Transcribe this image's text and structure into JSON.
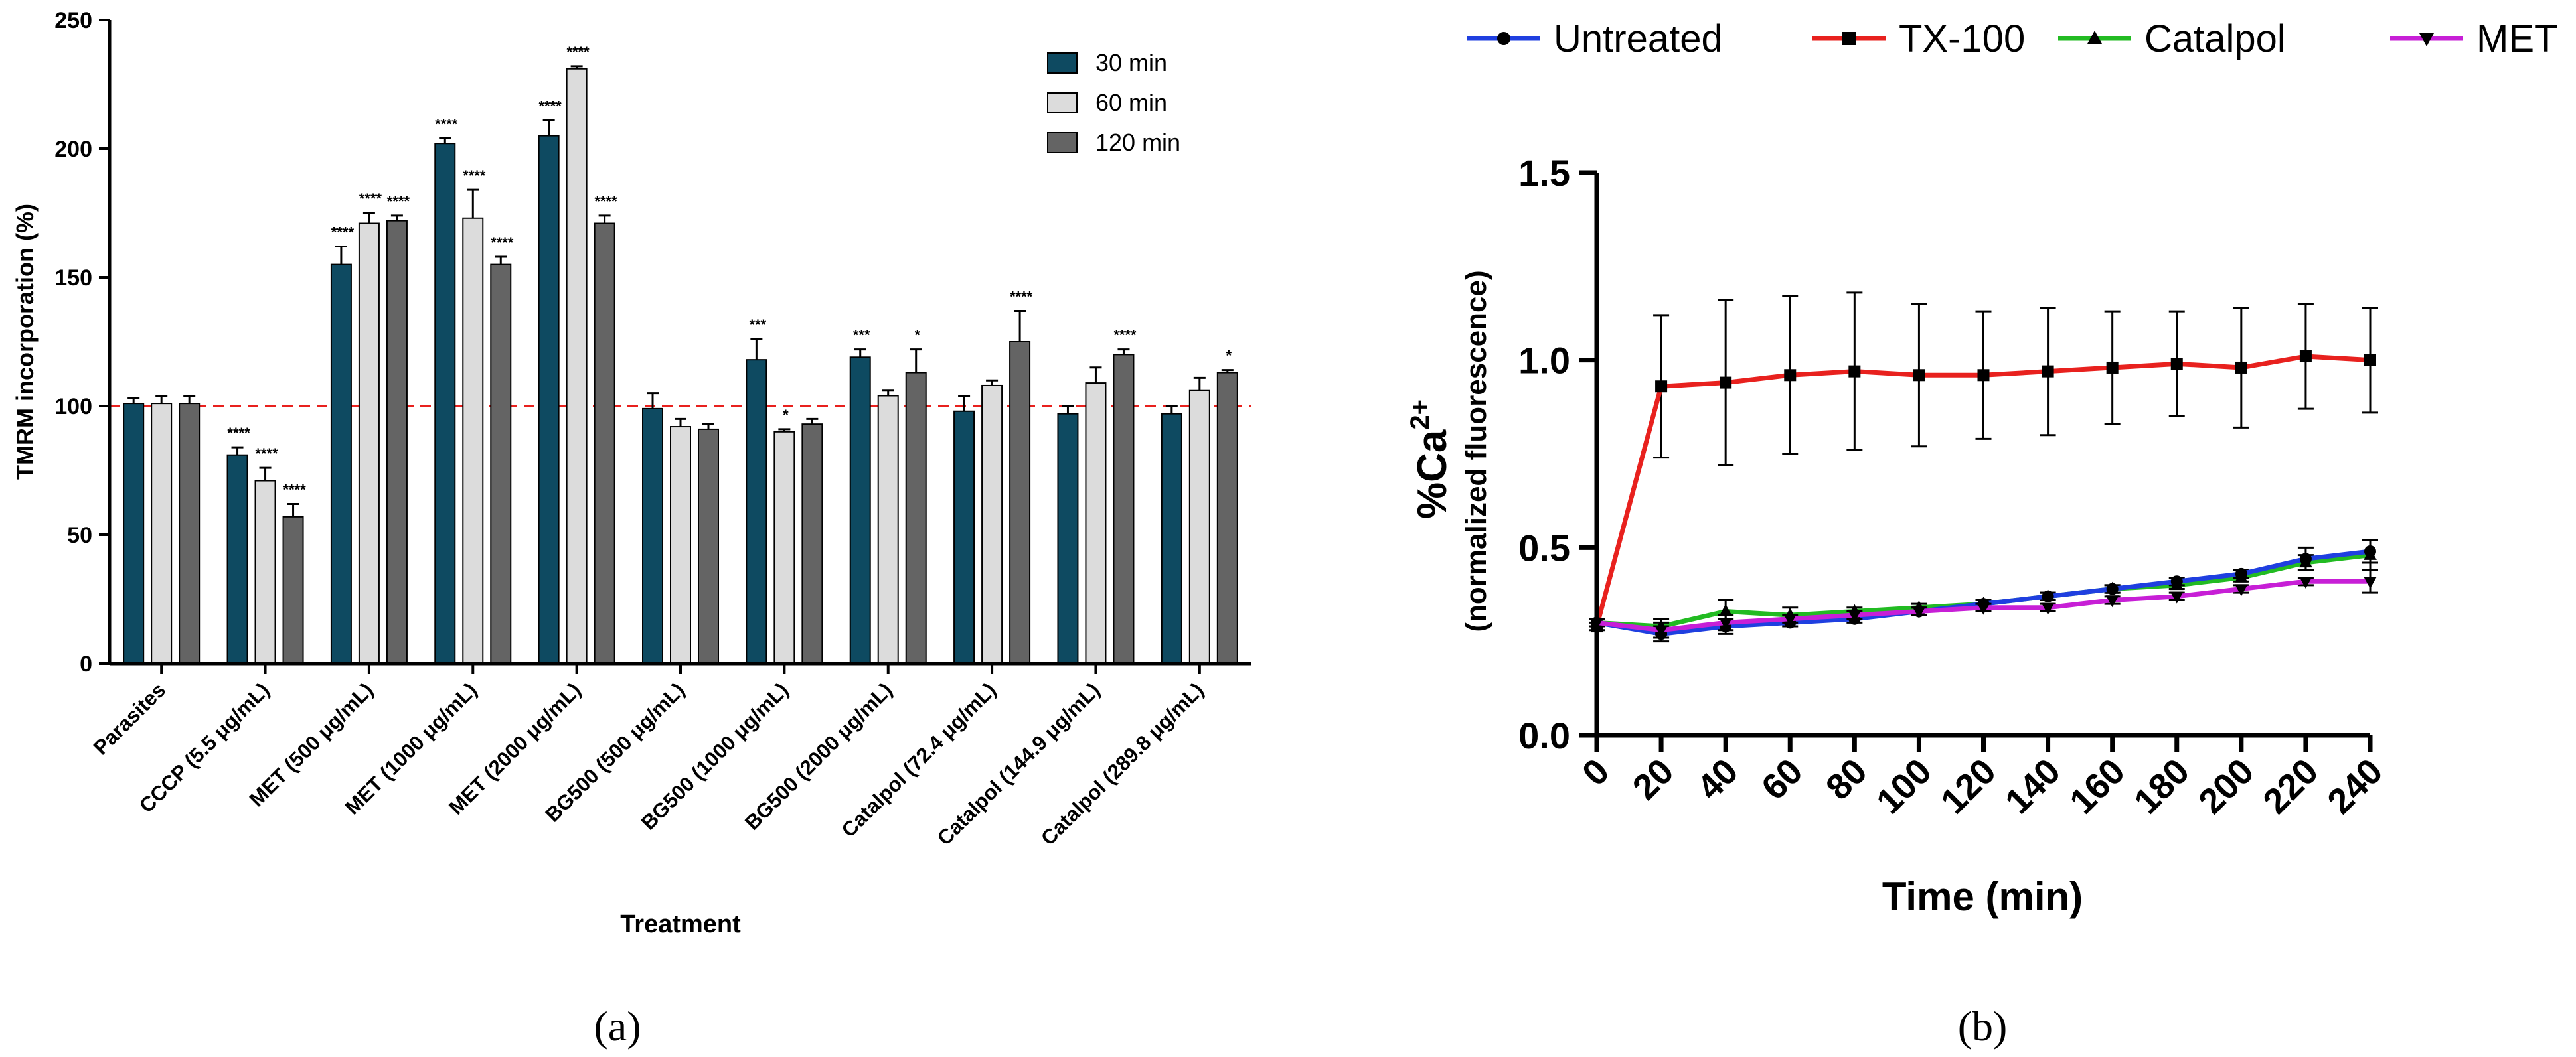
{
  "chart_data": [
    {
      "id": "a",
      "type": "bar",
      "panel_label": "(a)",
      "title": "",
      "xlabel": "Treatment",
      "ylabel": "TMRM incorporation (%)",
      "ylim": [
        0,
        250
      ],
      "yticks": [
        0,
        50,
        100,
        150,
        200,
        250
      ],
      "reference_line": {
        "y": 100,
        "color": "#e8211e",
        "style": "dashed"
      },
      "legend_position": "top-right",
      "categories": [
        "Parasites",
        "CCCP (5.5 μg/mL)",
        "MET (500 μg/mL)",
        "MET (1000 μg/mL)",
        "MET (2000 μg/mL)",
        "BG500 (500 μg/mL)",
        "BG500 (1000 μg/mL)",
        "BG500 (2000 μg/mL)",
        "Catalpol (72.4 μg/mL)",
        "Catalpol (144.9 μg/mL)",
        "Catalpol (289.8 μg/mL)"
      ],
      "series": [
        {
          "name": "30 min",
          "color": "#0e4a61",
          "values": [
            101,
            81,
            155,
            202,
            205,
            99,
            118,
            119,
            98,
            97,
            97
          ],
          "errors": [
            2,
            3,
            7,
            2,
            6,
            6,
            8,
            3,
            6,
            3,
            3
          ],
          "significance": [
            "",
            "****",
            "****",
            "****",
            "****",
            "",
            "***",
            "***",
            "",
            "",
            ""
          ]
        },
        {
          "name": "60 min",
          "color": "#dcdcdc",
          "values": [
            101,
            71,
            171,
            173,
            231,
            92,
            90,
            104,
            108,
            109,
            106
          ],
          "errors": [
            3,
            5,
            4,
            11,
            1,
            3,
            1,
            2,
            2,
            6,
            5
          ],
          "significance": [
            "",
            "****",
            "****",
            "****",
            "****",
            "",
            "*",
            "",
            "",
            "",
            ""
          ]
        },
        {
          "name": "120 min",
          "color": "#646464",
          "values": [
            101,
            57,
            172,
            155,
            171,
            91,
            93,
            113,
            125,
            120,
            113
          ],
          "errors": [
            3,
            5,
            2,
            3,
            3,
            2,
            2,
            9,
            12,
            2,
            1
          ],
          "significance": [
            "",
            "****",
            "****",
            "****",
            "****",
            "",
            "",
            "*",
            "****",
            "****",
            "*"
          ]
        }
      ]
    },
    {
      "id": "b",
      "type": "line",
      "panel_label": "(b)",
      "title": "",
      "xlabel": "Time (min)",
      "ylabel_main": "%Ca",
      "ylabel_sup": "2+",
      "ylabel_sub": "(normalized fluorescence)",
      "ylim": [
        0,
        1.5
      ],
      "yticks": [
        "0.0",
        "0.5",
        "1.0",
        "1.5"
      ],
      "xlim": [
        0,
        240
      ],
      "x": [
        0,
        20,
        40,
        60,
        80,
        100,
        120,
        140,
        160,
        180,
        200,
        220,
        240
      ],
      "legend_position": "top",
      "series": [
        {
          "name": "Untreated",
          "color": "#1f3fe0",
          "marker": "circle",
          "values": [
            0.3,
            0.27,
            0.29,
            0.3,
            0.31,
            0.33,
            0.35,
            0.37,
            0.39,
            0.41,
            0.43,
            0.47,
            0.49
          ],
          "errors": [
            0.01,
            0.02,
            0.02,
            0.01,
            0.01,
            0.01,
            0.01,
            0.01,
            0.01,
            0.01,
            0.01,
            0.03,
            0.03
          ]
        },
        {
          "name": "TX-100",
          "color": "#e8211e",
          "marker": "square",
          "values": [
            0.29,
            0.93,
            0.94,
            0.96,
            0.97,
            0.96,
            0.96,
            0.97,
            0.98,
            0.99,
            0.98,
            1.01,
            1.0
          ],
          "errors": [
            0.01,
            0.19,
            0.22,
            0.21,
            0.21,
            0.19,
            0.17,
            0.17,
            0.15,
            0.14,
            0.16,
            0.14,
            0.14
          ]
        },
        {
          "name": "Catalpol",
          "color": "#22bb22",
          "marker": "triangle-up",
          "values": [
            0.3,
            0.29,
            0.33,
            0.32,
            0.33,
            0.34,
            0.35,
            0.37,
            0.39,
            0.4,
            0.42,
            0.46,
            0.48
          ],
          "errors": [
            0.01,
            0.02,
            0.03,
            0.02,
            0.01,
            0.01,
            0.01,
            0.01,
            0.01,
            0.01,
            0.01,
            0.02,
            0.04
          ]
        },
        {
          "name": "MET",
          "color": "#c71fd6",
          "marker": "triangle-down",
          "values": [
            0.3,
            0.28,
            0.3,
            0.31,
            0.32,
            0.33,
            0.34,
            0.34,
            0.36,
            0.37,
            0.39,
            0.41,
            0.41
          ],
          "errors": [
            0.01,
            0.02,
            0.02,
            0.01,
            0.01,
            0.01,
            0.01,
            0.01,
            0.01,
            0.01,
            0.01,
            0.01,
            0.03
          ]
        }
      ]
    }
  ]
}
